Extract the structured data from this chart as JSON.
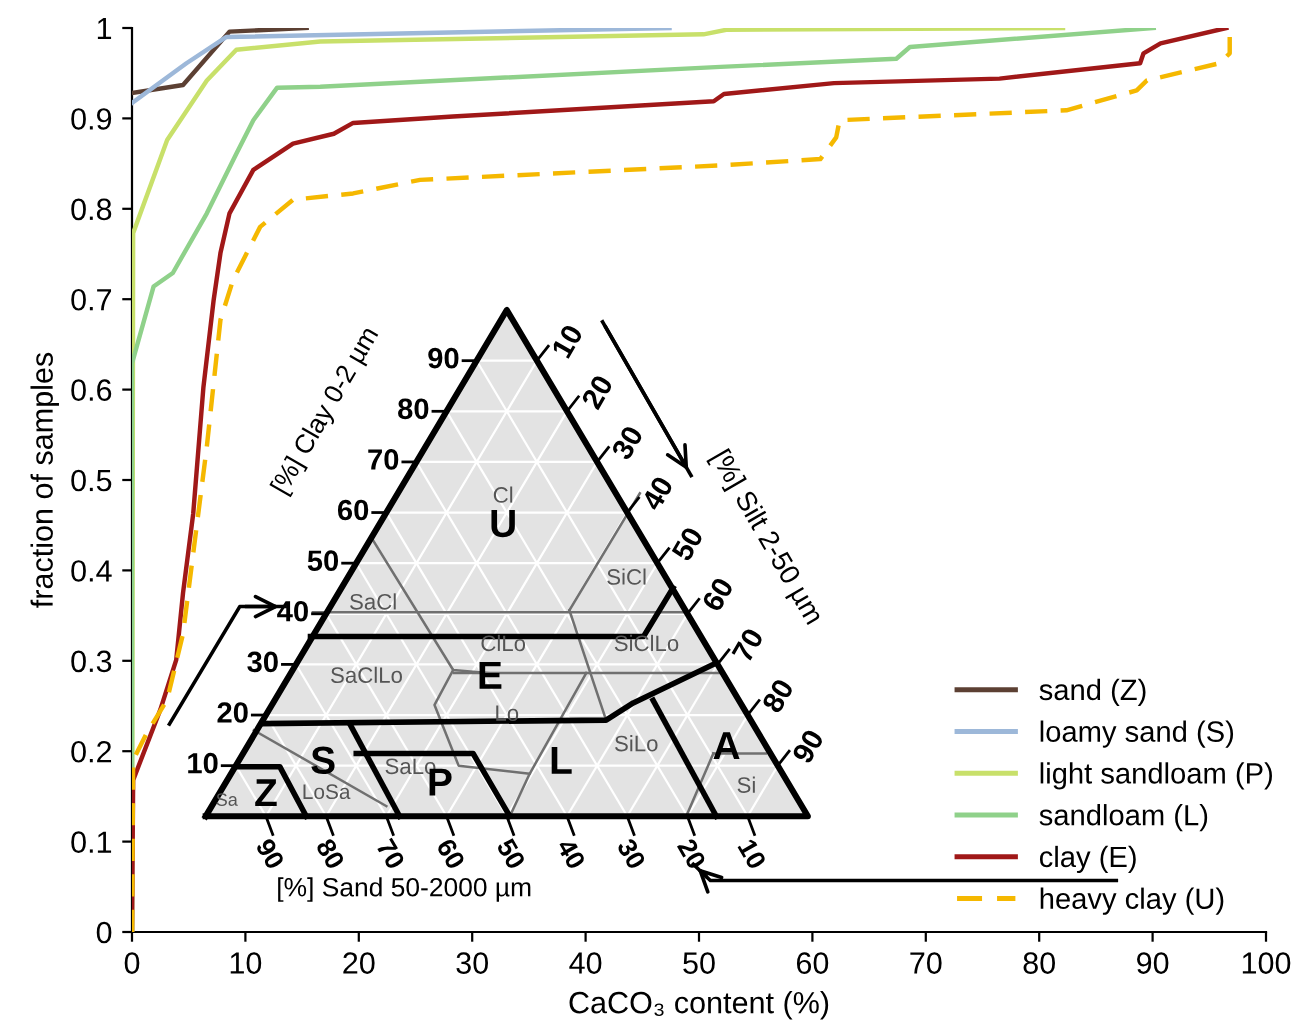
{
  "chart_data": {
    "type": "line",
    "xlabel": "CaCO₃ content (%)",
    "ylabel": "fraction of samples",
    "xlim": [
      0,
      100
    ],
    "xticks": [
      0,
      10,
      20,
      30,
      40,
      50,
      60,
      70,
      80,
      90,
      100
    ],
    "ylim": [
      0,
      1
    ],
    "yticks": [
      0,
      0.1,
      0.2,
      0.3,
      0.4,
      0.5,
      0.6,
      0.7,
      0.8,
      0.9,
      1
    ],
    "grid": false,
    "legend": "bottom right",
    "marker": "none",
    "series": [
      {
        "name": "sand (Z)",
        "color": "#5c4033",
        "line_style": "solid",
        "x": [
          0,
          4.5,
          8.6,
          15.4
        ],
        "values": [
          0.928,
          0.937,
          0.996,
          1.0
        ]
      },
      {
        "name": "loamy sand (S)",
        "color": "#9db8d9",
        "line_style": "solid",
        "x": [
          0,
          4.8,
          8.3,
          47.4
        ],
        "values": [
          0.917,
          0.961,
          0.99,
          1.0
        ]
      },
      {
        "name": "light sandloam (P)",
        "color": "#c8e06a",
        "line_style": "solid",
        "x": [
          0,
          0.1,
          3.1,
          6.6,
          9.2,
          16.6,
          50.4,
          52.4,
          82.1
        ],
        "values": [
          0,
          0.773,
          0.876,
          0.942,
          0.976,
          0.985,
          0.993,
          0.998,
          1.0
        ]
      },
      {
        "name": "sandloam (L)",
        "color": "#8fd18a",
        "line_style": "solid",
        "x": [
          0,
          0,
          1.9,
          3.6,
          6.6,
          9.2,
          10.7,
          12.8,
          16.6,
          51.9,
          67.4,
          68.6,
          90.1
        ],
        "values": [
          0,
          0.629,
          0.714,
          0.729,
          0.795,
          0.861,
          0.898,
          0.934,
          0.935,
          0.957,
          0.966,
          0.979,
          1.0
        ]
      },
      {
        "name": "clay (E)",
        "color": "#a01818",
        "line_style": "solid",
        "x": [
          0,
          0.1,
          2.5,
          3.9,
          4.5,
          5.4,
          6.3,
          7.2,
          7.8,
          8.6,
          10.7,
          14.2,
          17.8,
          19.5,
          28.3,
          51.3,
          52.2,
          61.9,
          76.5,
          88.9,
          89.2,
          90.7,
          96.5
        ],
        "values": [
          0,
          0.168,
          0.246,
          0.301,
          0.375,
          0.463,
          0.603,
          0.699,
          0.751,
          0.795,
          0.843,
          0.872,
          0.883,
          0.895,
          0.902,
          0.919,
          0.927,
          0.939,
          0.944,
          0.961,
          0.972,
          0.983,
          1.0
        ]
      },
      {
        "name": "heavy clay (U)",
        "color": "#f5b800",
        "line_style": "dashed",
        "x": [
          0,
          0.1,
          1.3,
          3.1,
          4.5,
          5.4,
          6.6,
          7.8,
          8.9,
          11.3,
          14.2,
          19.5,
          25.4,
          51.9,
          60.7,
          62.1,
          62.4,
          82.4,
          88.6,
          89.5,
          95.9,
          96.8,
          96.8
        ],
        "values": [
          0,
          0.19,
          0.22,
          0.257,
          0.33,
          0.419,
          0.537,
          0.677,
          0.721,
          0.78,
          0.81,
          0.817,
          0.832,
          0.848,
          0.855,
          0.879,
          0.898,
          0.909,
          0.931,
          0.942,
          0.961,
          0.972,
          0.99
        ]
      }
    ],
    "annotations": [
      "[%] Clay 0-2 µm",
      "[%] Silt 2-50 µm",
      "[%] Sand 50-2000 µm",
      "90",
      "80",
      "70",
      "60",
      "50",
      "40",
      "30",
      "20",
      "10",
      "10",
      "20",
      "30",
      "40",
      "50",
      "60",
      "70",
      "80",
      "90",
      "90",
      "80",
      "70",
      "60",
      "50",
      "40",
      "30",
      "20",
      "10",
      "Cl",
      "U",
      "SaCl",
      "SiCl",
      "ClLo",
      "SiClLo",
      "SaClLo",
      "E",
      "Lo",
      "SiLo",
      "A",
      "Si",
      "S",
      "SaLo",
      "P",
      "L",
      "Z",
      "LoSa",
      "Sa"
    ]
  }
}
